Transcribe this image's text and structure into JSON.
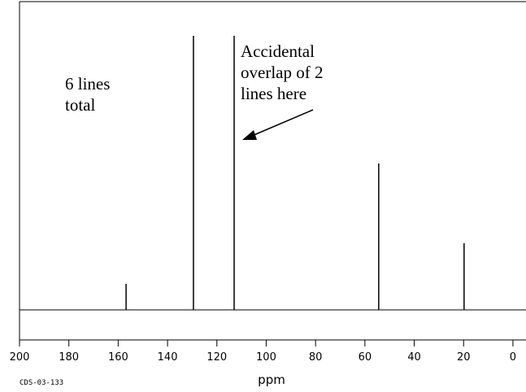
{
  "chart_data": {
    "type": "spectrum",
    "x": [
      156.8,
      129.5,
      113,
      54.4,
      19.8
    ],
    "values": [
      9.5,
      100,
      100,
      53.4,
      24.3
    ],
    "color": "#000000",
    "xlim": [
      200,
      -5.3
    ],
    "ylim": [
      0,
      100
    ],
    "xticks": [
      200,
      180,
      160,
      140,
      120,
      100,
      80,
      60,
      40,
      20,
      0
    ],
    "xlabel": "ppm",
    "footer": "CDS-03-133",
    "annotations": [
      [
        "6 lines",
        "total"
      ],
      [
        "Accidental",
        "overlap of 2",
        "lines here"
      ]
    ]
  }
}
